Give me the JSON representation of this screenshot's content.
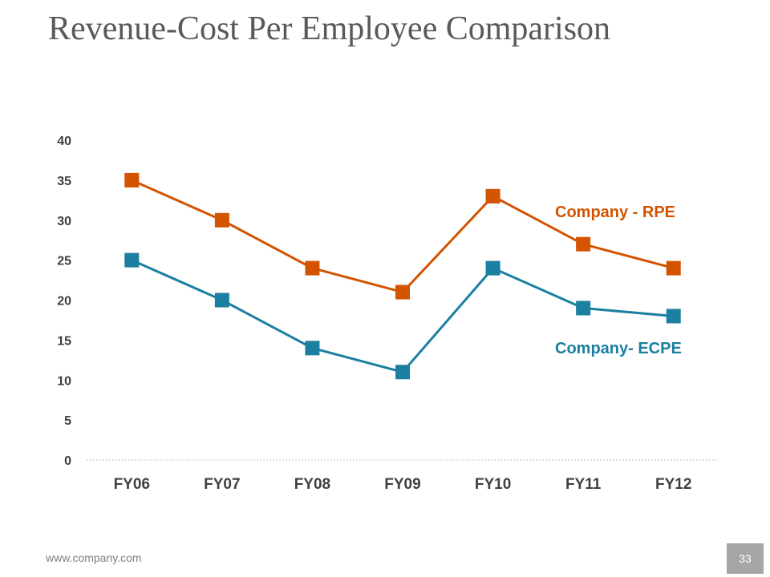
{
  "slide": {
    "title": "Revenue-Cost Per Employee Comparison",
    "footer_url": "www.company.com",
    "page_number": "33"
  },
  "chart_data": {
    "type": "line",
    "title": "Revenue-Cost Per Employee Comparison",
    "xlabel": "",
    "ylabel": "",
    "categories": [
      "FY06",
      "FY07",
      "FY08",
      "FY09",
      "FY10",
      "FY11",
      "FY12"
    ],
    "ylim": [
      0,
      40
    ],
    "yticks": [
      0,
      5,
      10,
      15,
      20,
      25,
      30,
      35,
      40
    ],
    "grid": false,
    "legend": "inline labels",
    "series": [
      {
        "name": "Company - RPE",
        "color": "#d35400",
        "values": [
          35,
          30,
          24,
          21,
          33,
          27,
          24
        ]
      },
      {
        "name": "Company- ECPE",
        "color": "#1a7fa0",
        "values": [
          25,
          20,
          14,
          11,
          24,
          19,
          18
        ]
      }
    ]
  }
}
